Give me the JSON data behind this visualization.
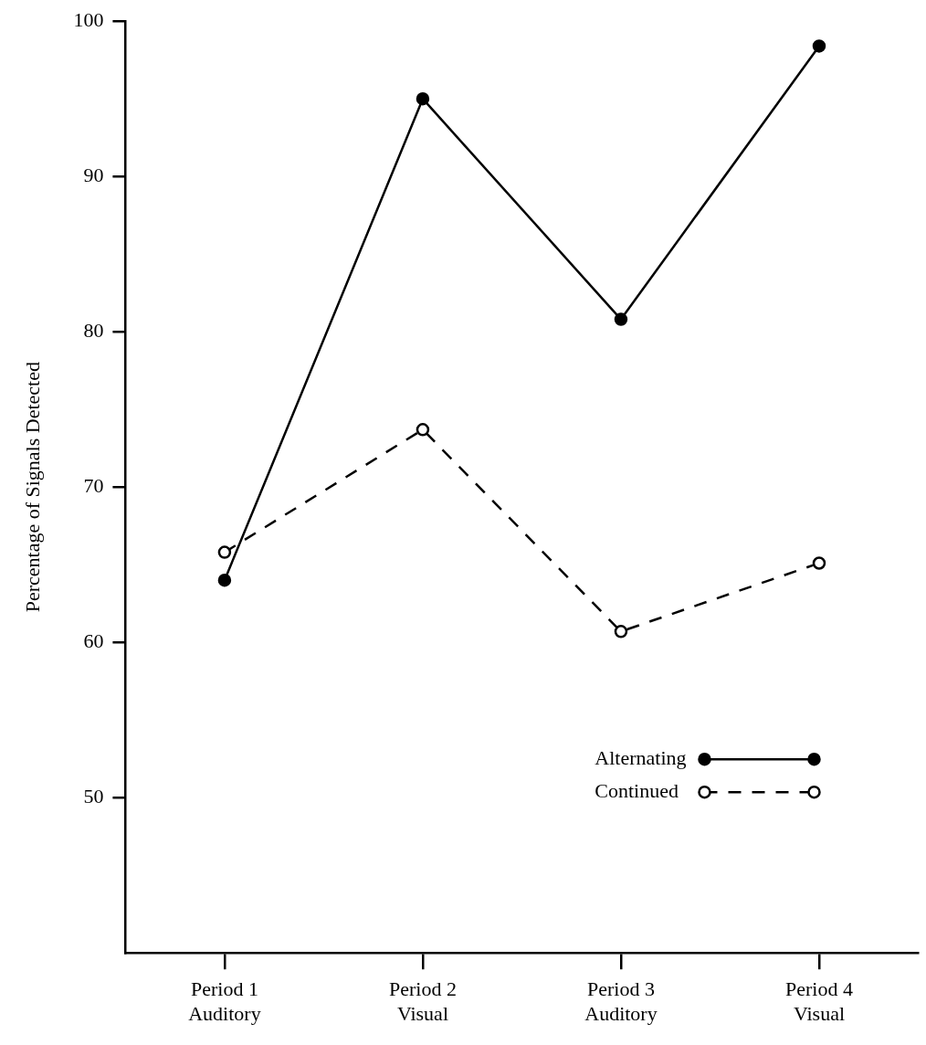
{
  "chart_data": {
    "type": "line",
    "ylabel": "Percentage of Signals Detected",
    "categories": [
      "Period 1\nAuditory",
      "Period 2\nVisual",
      "Period 3\nAuditory",
      "Period 4\nVisual"
    ],
    "series": [
      {
        "name": "Alternating",
        "color": "#000000",
        "values": [
          64.0,
          95.0,
          80.8,
          98.4
        ],
        "line_style": "solid"
      },
      {
        "name": "Continued",
        "color": "#000000",
        "values": [
          65.8,
          73.7,
          60.7,
          65.1
        ],
        "line_style": "dashed"
      }
    ],
    "ylim": [
      40,
      100
    ],
    "yticks": [
      50,
      60,
      70,
      80,
      90,
      100
    ],
    "marker": "circle",
    "legend": "bottom right",
    "grid": false
  }
}
